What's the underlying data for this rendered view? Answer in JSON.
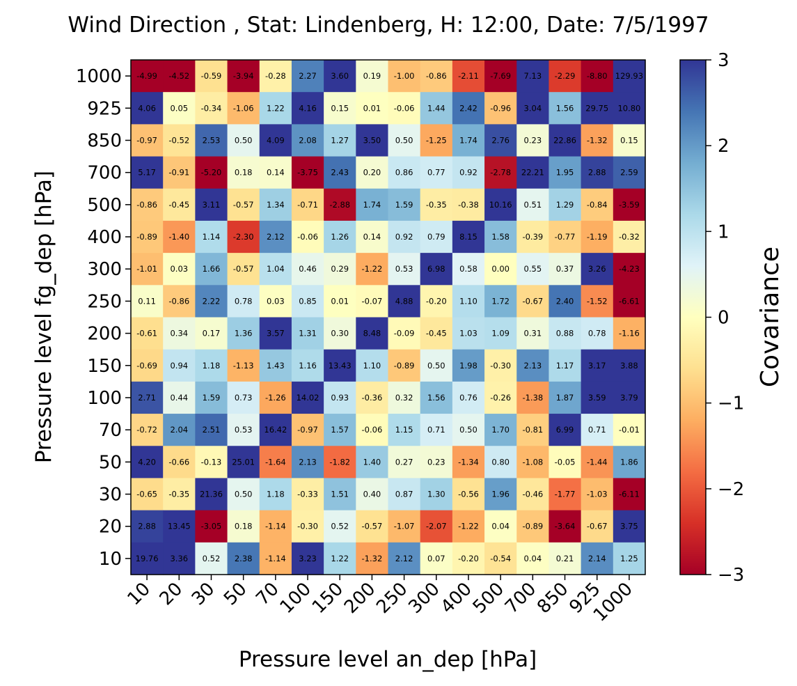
{
  "chart_data": {
    "type": "heatmap",
    "title": "Wind Direction , Stat: Lindenberg, H: 12:00, Date: 7/5/1997",
    "xlabel": "Pressure level an_dep [hPa]",
    "ylabel": "Pressure level fg_dep [hPa]",
    "x_categories": [
      "10",
      "20",
      "30",
      "50",
      "70",
      "100",
      "150",
      "200",
      "250",
      "300",
      "400",
      "500",
      "700",
      "850",
      "925",
      "1000"
    ],
    "y_categories": [
      "1000",
      "925",
      "850",
      "700",
      "500",
      "400",
      "300",
      "250",
      "200",
      "150",
      "100",
      "70",
      "50",
      "30",
      "20",
      "10"
    ],
    "values": [
      [
        -4.99,
        -4.52,
        -0.59,
        -3.94,
        -0.28,
        2.27,
        3.6,
        0.19,
        -1.0,
        -0.86,
        -2.11,
        -7.69,
        7.13,
        -2.29,
        -8.8,
        129.93
      ],
      [
        4.06,
        0.05,
        -0.34,
        -1.06,
        1.22,
        4.16,
        0.15,
        0.01,
        -0.06,
        1.44,
        2.42,
        -0.96,
        3.04,
        1.56,
        29.75,
        10.8
      ],
      [
        -0.97,
        -0.52,
        2.53,
        0.5,
        4.09,
        2.08,
        1.27,
        3.5,
        0.5,
        -1.25,
        1.74,
        2.76,
        0.23,
        22.86,
        -1.32,
        0.15
      ],
      [
        5.17,
        -0.91,
        -5.2,
        0.18,
        0.14,
        -3.75,
        2.43,
        0.2,
        0.86,
        0.77,
        0.92,
        -2.78,
        22.21,
        1.95,
        2.88,
        2.59
      ],
      [
        -0.86,
        -0.45,
        3.11,
        -0.57,
        1.34,
        -0.71,
        -2.88,
        1.74,
        1.59,
        -0.35,
        -0.38,
        10.16,
        0.51,
        1.29,
        -0.84,
        -3.59
      ],
      [
        -0.89,
        -1.4,
        1.14,
        -2.3,
        2.12,
        -0.06,
        1.26,
        0.14,
        0.92,
        0.79,
        8.15,
        1.58,
        -0.39,
        -0.77,
        -1.19,
        -0.32
      ],
      [
        -1.01,
        0.03,
        1.66,
        -0.57,
        1.04,
        0.46,
        0.29,
        -1.22,
        0.53,
        6.98,
        0.58,
        -0.0,
        0.55,
        0.37,
        3.26,
        -4.23
      ],
      [
        0.11,
        -0.86,
        2.22,
        0.78,
        0.03,
        0.85,
        0.01,
        -0.07,
        4.88,
        -0.2,
        1.1,
        1.72,
        -0.67,
        2.4,
        -1.52,
        -6.61
      ],
      [
        -0.61,
        0.34,
        0.17,
        1.36,
        3.57,
        1.31,
        0.3,
        8.48,
        -0.09,
        -0.45,
        1.03,
        1.09,
        0.31,
        0.88,
        0.78,
        -1.16
      ],
      [
        -0.69,
        0.94,
        1.18,
        -1.13,
        1.43,
        1.16,
        13.43,
        1.1,
        -0.89,
        0.5,
        1.98,
        -0.3,
        2.13,
        1.17,
        3.17,
        3.88
      ],
      [
        2.71,
        0.44,
        1.59,
        0.73,
        -1.26,
        14.02,
        0.93,
        -0.36,
        0.32,
        1.56,
        0.76,
        -0.26,
        -1.38,
        1.87,
        3.59,
        3.79
      ],
      [
        -0.72,
        2.04,
        2.51,
        0.53,
        16.42,
        -0.97,
        1.57,
        -0.06,
        1.15,
        0.71,
        0.5,
        1.7,
        -0.81,
        6.99,
        0.71,
        -0.01
      ],
      [
        4.2,
        -0.66,
        -0.13,
        25.01,
        -1.64,
        2.13,
        -1.82,
        1.4,
        0.27,
        0.23,
        -1.34,
        0.8,
        -1.08,
        -0.05,
        -1.44,
        1.86
      ],
      [
        -0.65,
        -0.35,
        21.36,
        0.5,
        1.18,
        -0.33,
        1.51,
        0.4,
        0.87,
        1.3,
        -0.56,
        1.96,
        -0.46,
        -1.77,
        -1.03,
        -6.11
      ],
      [
        2.88,
        13.45,
        -3.05,
        0.18,
        -1.14,
        -0.3,
        0.52,
        -0.57,
        -1.07,
        -2.07,
        -1.22,
        0.04,
        -0.89,
        -3.64,
        -0.67,
        3.75
      ],
      [
        19.76,
        3.36,
        0.52,
        2.38,
        -1.14,
        3.23,
        1.22,
        -1.32,
        2.12,
        0.07,
        -0.2,
        -0.54,
        0.04,
        0.21,
        2.14,
        1.25
      ]
    ],
    "colormap": "RdYlBu",
    "vmin": -3,
    "vmax": 3,
    "colorbar": {
      "label": "Covariance",
      "ticks": [
        "3",
        "2",
        "1",
        "0",
        "−1",
        "−2",
        "−3"
      ],
      "tick_values": [
        3,
        2,
        1,
        0,
        -1,
        -2,
        -3
      ]
    }
  }
}
